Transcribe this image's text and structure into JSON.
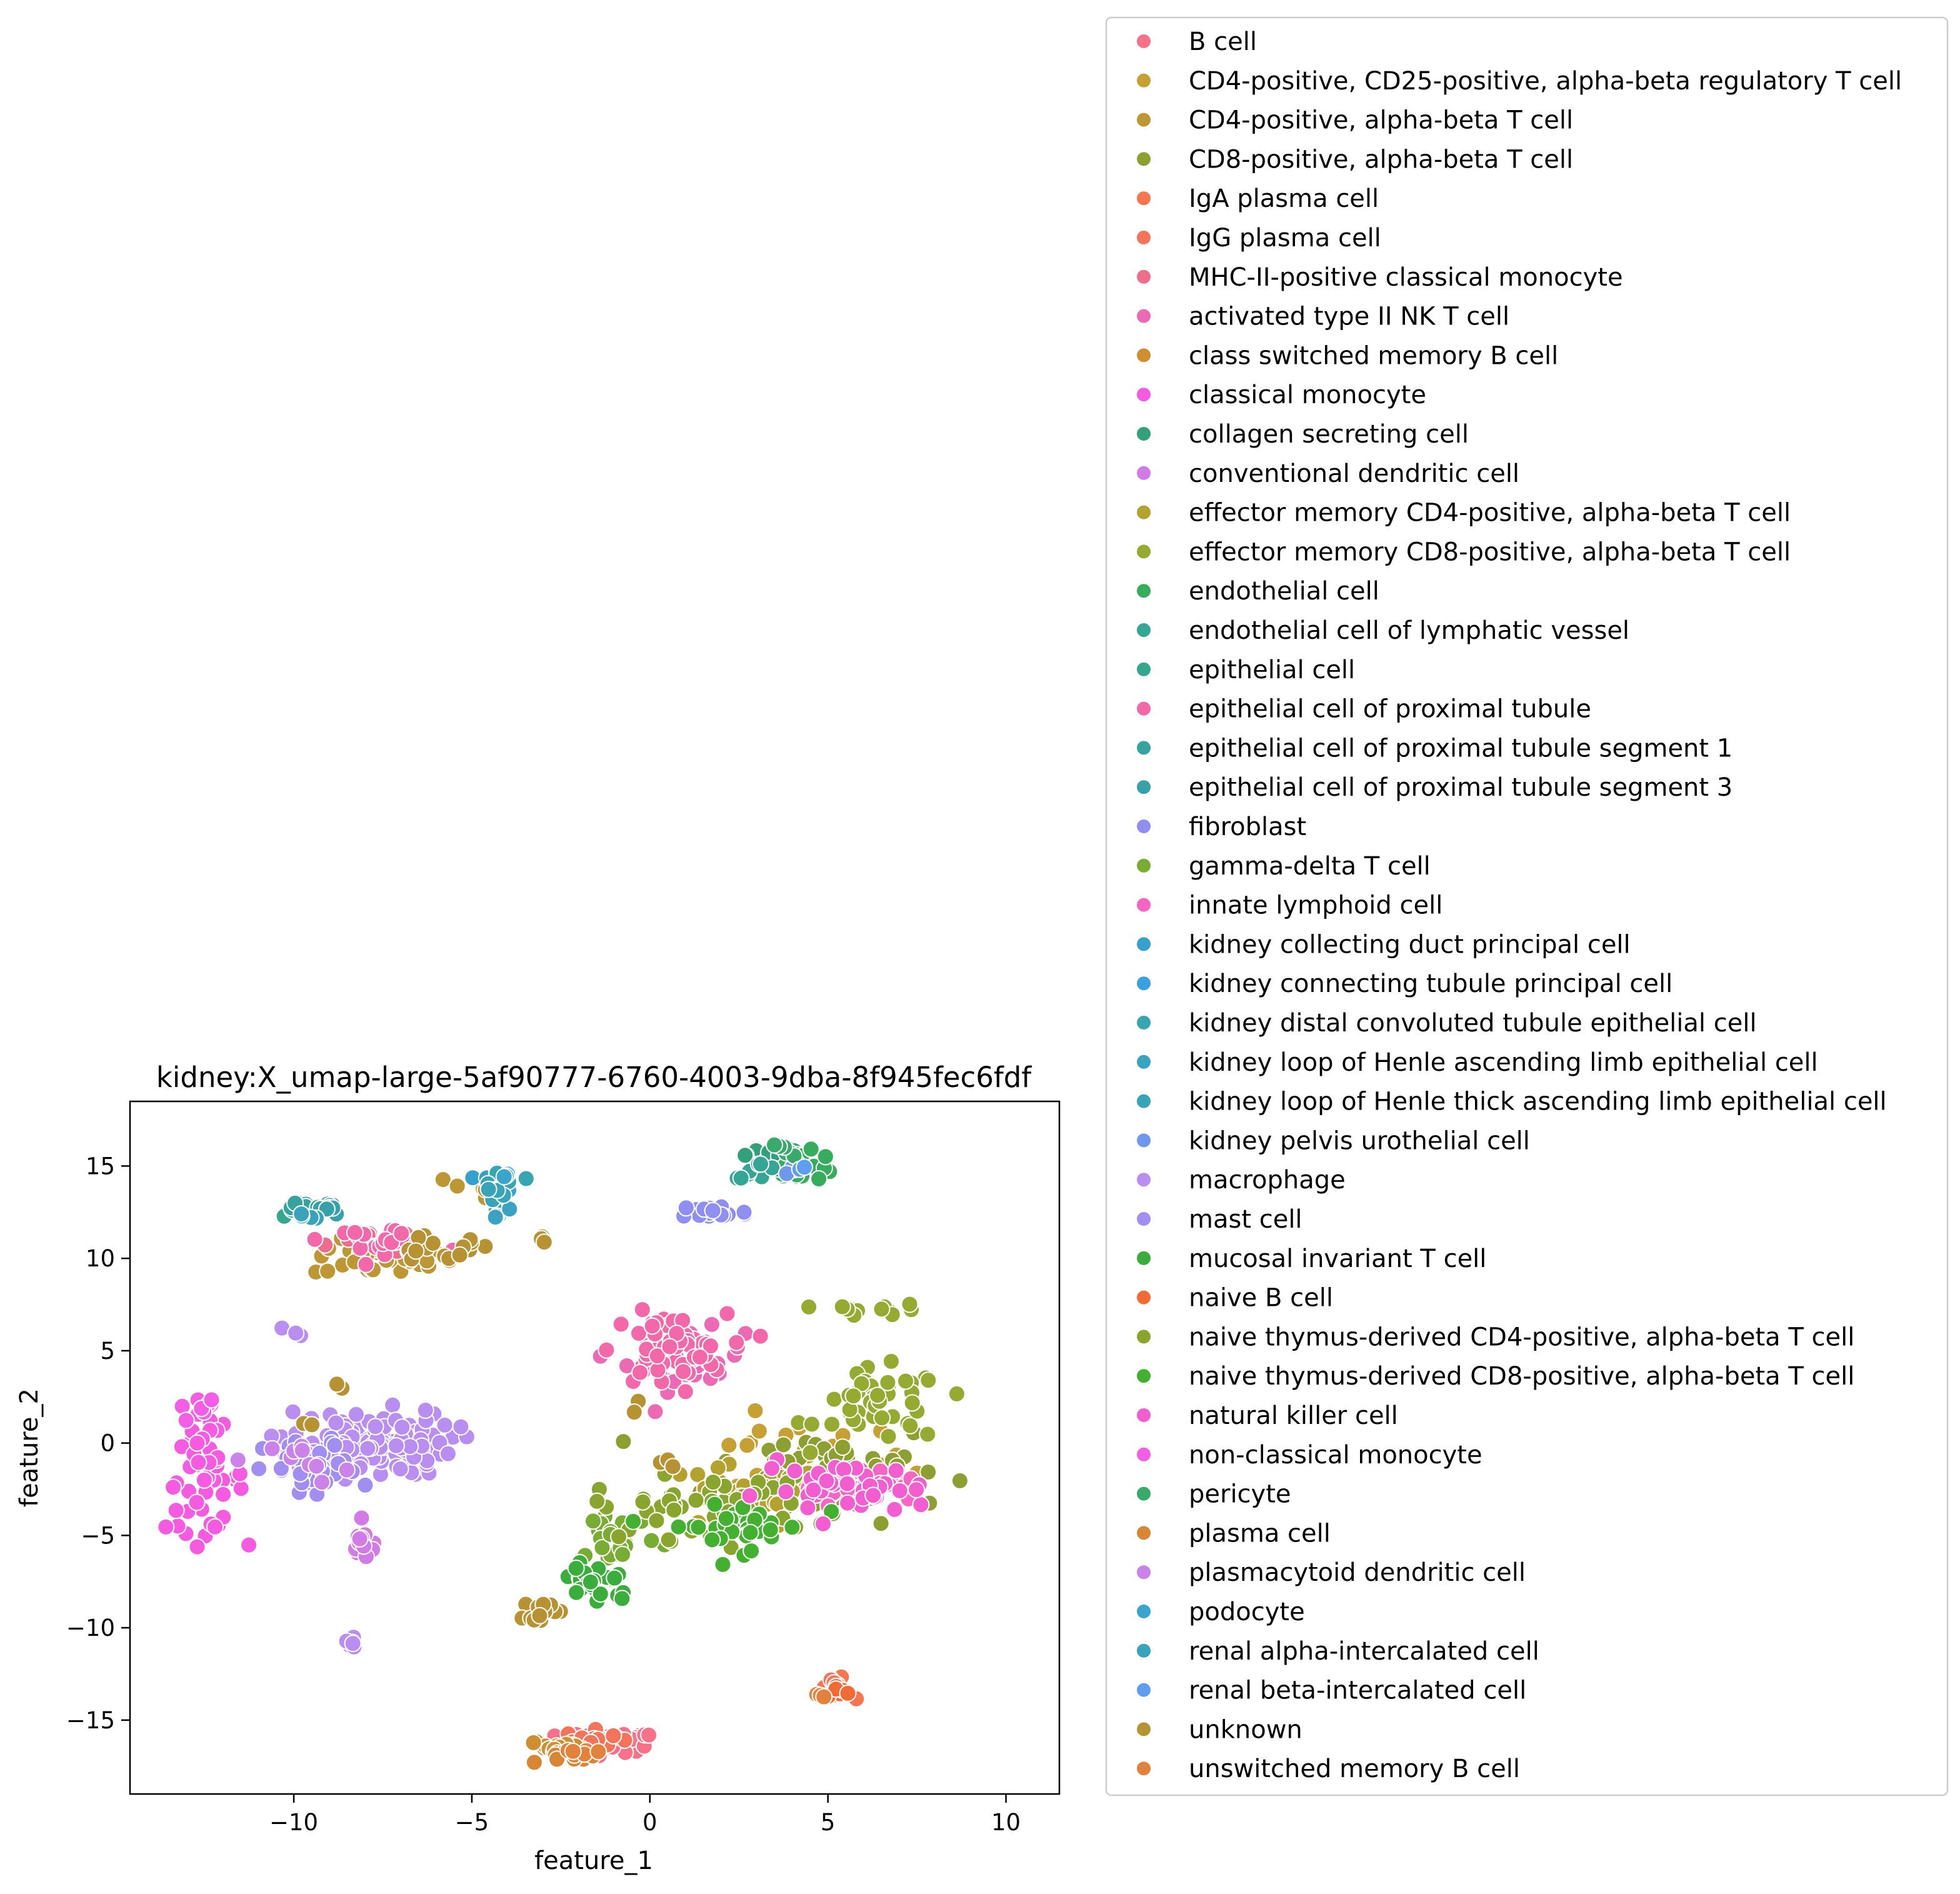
{
  "chart_data": {
    "type": "scatter",
    "title": "kidney:X_umap-large-5af90777-6760-4003-9dba-8f945fec6fdf",
    "xlabel": "feature_1",
    "ylabel": "feature_2",
    "xlim": [
      -14.6,
      11.5
    ],
    "ylim": [
      -19.0,
      18.5
    ],
    "xticks": [
      -10,
      -5,
      0,
      5,
      10
    ],
    "yticks": [
      -15,
      -10,
      -5,
      0,
      5,
      10,
      15
    ],
    "xtick_labels": [
      "−10",
      "−5",
      "0",
      "5",
      "10"
    ],
    "ytick_labels": [
      "−15",
      "−10",
      "−5",
      "0",
      "5",
      "10",
      "15"
    ],
    "grid": false,
    "legend_position": "outside right",
    "series": [
      {
        "name": "B cell",
        "color": "#f77189",
        "clusters": [
          [
            -1.2,
            -16.2,
            1.3,
            0.5,
            55
          ]
        ]
      },
      {
        "name": "CD4-positive, CD25-positive, alpha-beta regulatory T cell",
        "color": "#c7a034",
        "clusters": [
          [
            4.0,
            -1.0,
            3.0,
            2.0,
            25
          ]
        ]
      },
      {
        "name": "CD4-positive, alpha-beta T cell",
        "color": "#bd9733",
        "clusters": [
          [
            -7.5,
            10.0,
            1.8,
            0.9,
            40
          ],
          [
            -4.8,
            13.8,
            0.8,
            0.8,
            10
          ]
        ]
      },
      {
        "name": "CD8-positive, alpha-beta T cell",
        "color": "#8e9f31",
        "clusters": [
          [
            5.0,
            -1.5,
            3.0,
            2.5,
            60
          ]
        ]
      },
      {
        "name": "IgA plasma cell",
        "color": "#f7754f",
        "clusters": [
          [
            5.2,
            -13.3,
            0.4,
            0.5,
            8
          ]
        ]
      },
      {
        "name": "IgG plasma cell",
        "color": "#f37459",
        "clusters": [
          [
            -1.5,
            -16.0,
            0.8,
            0.4,
            15
          ],
          [
            5.1,
            -13.0,
            0.3,
            0.4,
            5
          ]
        ]
      },
      {
        "name": "MHC-II-positive classical monocyte",
        "color": "#ee6d8b",
        "clusters": [
          [
            -8.0,
            11.0,
            1.0,
            0.7,
            15
          ]
        ]
      },
      {
        "name": "activated type II NK T cell",
        "color": "#ec6ab4",
        "clusters": [
          [
            1.0,
            4.5,
            1.5,
            1.5,
            30
          ]
        ]
      },
      {
        "name": "class switched memory B cell",
        "color": "#ce8f31",
        "clusters": [
          [
            -2.5,
            -16.5,
            0.8,
            0.4,
            20
          ]
        ]
      },
      {
        "name": "classical monocyte",
        "color": "#f45be0",
        "clusters": [
          [
            -12.5,
            -2.0,
            1.0,
            2.5,
            50
          ]
        ]
      },
      {
        "name": "collagen secreting cell",
        "color": "#32a07b",
        "clusters": [
          [
            3.6,
            15.6,
            0.8,
            0.5,
            30
          ]
        ]
      },
      {
        "name": "conventional dendritic cell",
        "color": "#d27ae6",
        "clusters": [
          [
            -8.0,
            -5.5,
            0.4,
            0.8,
            15
          ]
        ]
      },
      {
        "name": "effector memory CD4-positive, alpha-beta T cell",
        "color": "#b4a22f",
        "clusters": [
          [
            2.5,
            -3.0,
            2.2,
            1.6,
            35
          ]
        ]
      },
      {
        "name": "effector memory CD8-positive, alpha-beta T cell",
        "color": "#94aa31",
        "clusters": [
          [
            6.5,
            2.0,
            1.6,
            1.8,
            45
          ],
          [
            6.5,
            7.2,
            1.3,
            0.3,
            12
          ]
        ]
      },
      {
        "name": "endothelial cell",
        "color": "#36ac5c",
        "clusters": [
          [
            4.2,
            15.0,
            1.0,
            0.7,
            25
          ]
        ]
      },
      {
        "name": "endothelial cell of lymphatic vessel",
        "color": "#35a596",
        "clusters": [
          [
            3.0,
            14.8,
            0.6,
            0.4,
            8
          ]
        ]
      },
      {
        "name": "epithelial cell",
        "color": "#35a78c",
        "clusters": [
          [
            -9.8,
            12.5,
            0.6,
            0.3,
            8
          ]
        ]
      },
      {
        "name": "epithelial cell of proximal tubule",
        "color": "#f268a9",
        "clusters": [
          [
            -7.5,
            11.0,
            1.5,
            0.6,
            25
          ],
          [
            0.5,
            5.0,
            1.5,
            1.8,
            60
          ]
        ]
      },
      {
        "name": "epithelial cell of proximal tubule segment 1",
        "color": "#36a39e",
        "clusters": [
          [
            -9.5,
            12.8,
            0.5,
            0.3,
            8
          ]
        ]
      },
      {
        "name": "epithelial cell of proximal tubule segment 3",
        "color": "#38a1a8",
        "clusters": [
          [
            -9.0,
            12.7,
            0.5,
            0.3,
            8
          ]
        ]
      },
      {
        "name": "fibroblast",
        "color": "#8e8ff0",
        "clusters": [
          [
            1.8,
            12.5,
            0.9,
            0.4,
            25
          ]
        ]
      },
      {
        "name": "gamma-delta T cell",
        "color": "#78ac32",
        "clusters": [
          [
            -1.0,
            -5.0,
            1.2,
            1.5,
            25
          ]
        ]
      },
      {
        "name": "innate lymphoid cell",
        "color": "#f565c1",
        "clusters": [
          [
            6.0,
            -2.5,
            1.5,
            1.0,
            30
          ]
        ]
      },
      {
        "name": "kidney collecting duct principal cell",
        "color": "#379fcb",
        "clusters": [
          [
            -4.5,
            14.5,
            0.4,
            0.4,
            6
          ]
        ]
      },
      {
        "name": "kidney connecting tubule principal cell",
        "color": "#3aa1de",
        "clusters": [
          [
            -4.2,
            14.0,
            0.4,
            0.4,
            5
          ]
        ]
      },
      {
        "name": "kidney distal convoluted tubule epithelial cell",
        "color": "#38a5b2",
        "clusters": [
          [
            -4.0,
            14.3,
            0.4,
            0.4,
            6
          ]
        ]
      },
      {
        "name": "kidney loop of Henle ascending limb epithelial cell",
        "color": "#3aa3c2",
        "clusters": [
          [
            -4.3,
            12.5,
            0.3,
            0.4,
            5
          ]
        ]
      },
      {
        "name": "kidney loop of Henle thick ascending limb epithelial cell",
        "color": "#37a4b8",
        "clusters": [
          [
            -4.1,
            13.5,
            0.3,
            0.4,
            5
          ]
        ]
      },
      {
        "name": "kidney pelvis urothelial cell",
        "color": "#6e97ee",
        "clusters": [
          [
            4.0,
            14.8,
            0.2,
            0.2,
            2
          ]
        ]
      },
      {
        "name": "macrophage",
        "color": "#b88ff1",
        "clusters": [
          [
            -8.0,
            0.0,
            2.2,
            1.6,
            120
          ],
          [
            -10.0,
            6.0,
            0.3,
            0.3,
            4
          ],
          [
            -8.4,
            -10.8,
            0.3,
            0.5,
            6
          ]
        ]
      },
      {
        "name": "mast cell",
        "color": "#a28ef1",
        "clusters": [
          [
            -9.5,
            -1.5,
            1.2,
            1.5,
            40
          ]
        ]
      },
      {
        "name": "mucosal invariant T cell",
        "color": "#3aad3c",
        "clusters": [
          [
            -1.5,
            -7.5,
            1.0,
            1.2,
            25
          ]
        ]
      },
      {
        "name": "naive B cell",
        "color": "#f26b35",
        "clusters": [
          [
            5.5,
            -13.5,
            0.4,
            0.3,
            6
          ]
        ]
      },
      {
        "name": "naive thymus-derived CD4-positive, alpha-beta T cell",
        "color": "#8aa52d",
        "clusters": [
          [
            1.5,
            -3.5,
            2.8,
            1.5,
            50
          ]
        ]
      },
      {
        "name": "naive thymus-derived CD8-positive, alpha-beta T cell",
        "color": "#43b02f",
        "clusters": [
          [
            2.5,
            -4.5,
            1.8,
            1.2,
            35
          ]
        ]
      },
      {
        "name": "natural killer cell",
        "color": "#f25ed0",
        "clusters": [
          [
            5.5,
            -2.5,
            2.2,
            1.3,
            40
          ]
        ]
      },
      {
        "name": "non-classical monocyte",
        "color": "#f35ee6",
        "clusters": [
          [
            -12.5,
            2.0,
            0.7,
            0.5,
            10
          ]
        ]
      },
      {
        "name": "pericyte",
        "color": "#3aa96c",
        "clusters": [
          [
            3.8,
            15.8,
            0.4,
            0.3,
            5
          ]
        ]
      },
      {
        "name": "plasma cell",
        "color": "#d88534",
        "clusters": [
          [
            -2.0,
            -17.0,
            0.8,
            0.3,
            10
          ]
        ]
      },
      {
        "name": "plasmacytoid dendritic cell",
        "color": "#cb83ea",
        "clusters": [
          [
            -9.5,
            -1.0,
            1.0,
            1.0,
            10
          ]
        ]
      },
      {
        "name": "podocyte",
        "color": "#3aa5cc",
        "clusters": [
          [
            -4.0,
            14.5,
            0.2,
            0.2,
            3
          ]
        ]
      },
      {
        "name": "renal alpha-intercalated cell",
        "color": "#38a3bb",
        "clusters": [
          [
            -9.8,
            12.3,
            0.3,
            0.2,
            5
          ]
        ]
      },
      {
        "name": "renal beta-intercalated cell",
        "color": "#5d9eef",
        "clusters": [
          [
            4.2,
            14.8,
            0.2,
            0.2,
            2
          ]
        ]
      },
      {
        "name": "unknown",
        "color": "#b79232",
        "clusters": [
          [
            -3.0,
            -9.0,
            0.5,
            0.5,
            12
          ],
          [
            -6.0,
            10.5,
            1.5,
            0.6,
            15
          ],
          [
            -3.0,
            11.0,
            0.2,
            0.2,
            3
          ],
          [
            0.5,
            -1.0,
            0.3,
            0.3,
            3
          ],
          [
            -8.5,
            3.0,
            0.3,
            0.3,
            2
          ],
          [
            -9.5,
            1.0,
            0.3,
            0.3,
            2
          ],
          [
            -0.3,
            2.0,
            0.2,
            0.2,
            2
          ]
        ]
      },
      {
        "name": "unswitched memory B cell",
        "color": "#e3823d",
        "clusters": [
          [
            4.8,
            -13.7,
            0.2,
            0.2,
            3
          ],
          [
            -2.0,
            -16.7,
            0.5,
            0.3,
            6
          ]
        ]
      }
    ]
  }
}
